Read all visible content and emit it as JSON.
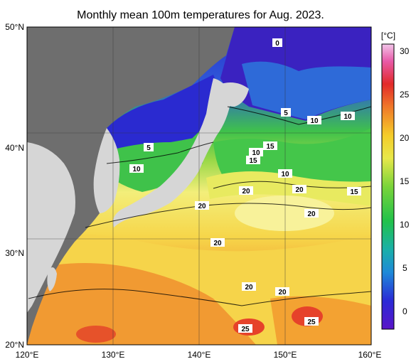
{
  "title": "Monthly mean 100m temperatures for Aug. 2023.",
  "colorbar": {
    "unit": "[°C]",
    "ticks": [
      "30",
      "25",
      "20",
      "15",
      "10",
      "5",
      "0"
    ],
    "range": [
      -2,
      31
    ]
  },
  "axes": {
    "lat_ticks": [
      "50°N",
      "40°N",
      "30°N",
      "20°N"
    ],
    "lon_ticks": [
      "120°E",
      "130°E",
      "140°E",
      "150°E",
      "160°E"
    ],
    "lat_range": [
      20,
      50
    ],
    "lon_range": [
      120,
      160
    ]
  },
  "contour_labels": [
    "0",
    "5",
    "10",
    "10",
    "5",
    "10",
    "15",
    "10",
    "15",
    "10",
    "20",
    "20",
    "15",
    "20",
    "20",
    "20",
    "20",
    "20",
    "25",
    "25"
  ],
  "colors": {
    "land": "#d9d9d9",
    "sea_ice_region_land": "#6e6e6e",
    "cold": "#3b12b8",
    "cool": "#1e7ae0",
    "mid": "#3fc24a",
    "warm": "#f5e64a",
    "hot": "#f08a2a",
    "hottest": "#e2342a"
  }
}
